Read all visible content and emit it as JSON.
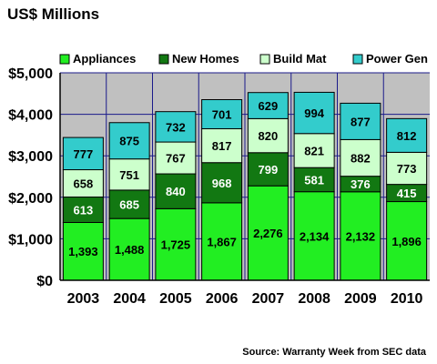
{
  "title": "US$ Millions",
  "source": "Source: Warranty Week from SEC data",
  "colors": {
    "Appliances": "#22ee22",
    "New Homes": "#127812",
    "Build Mat": "#ccffcc",
    "Power Gen": "#33cccc",
    "plot_bg": "#c0c0c0",
    "grid": "#1a1a8a"
  },
  "chart_data": {
    "type": "bar",
    "stacked": true,
    "categories": [
      "2003",
      "2004",
      "2005",
      "2006",
      "2007",
      "2008",
      "2009",
      "2010"
    ],
    "series": [
      {
        "name": "Appliances",
        "values": [
          1393,
          1488,
          1725,
          1867,
          2276,
          2134,
          2132,
          1896
        ],
        "labels": [
          "1,393",
          "1,488",
          "1,725",
          "1,867",
          "2,276",
          "2,134",
          "2,132",
          "1,896"
        ]
      },
      {
        "name": "New Homes",
        "values": [
          613,
          685,
          840,
          968,
          799,
          581,
          376,
          415
        ],
        "labels": [
          "613",
          "685",
          "840",
          "968",
          "799",
          "581",
          "376",
          "415"
        ]
      },
      {
        "name": "Build Mat",
        "values": [
          658,
          751,
          767,
          817,
          820,
          821,
          882,
          773
        ],
        "labels": [
          "658",
          "751",
          "767",
          "817",
          "820",
          "821",
          "882",
          "773"
        ]
      },
      {
        "name": "Power Gen",
        "values": [
          777,
          875,
          732,
          701,
          629,
          994,
          877,
          812
        ],
        "labels": [
          "777",
          "875",
          "732",
          "701",
          "629",
          "994",
          "877",
          "812"
        ]
      }
    ],
    "yticks": [
      "$0",
      "$1,000",
      "$2,000",
      "$3,000",
      "$4,000",
      "$5,000"
    ],
    "ylim": [
      0,
      5000
    ],
    "grid": true,
    "legend": "top"
  }
}
